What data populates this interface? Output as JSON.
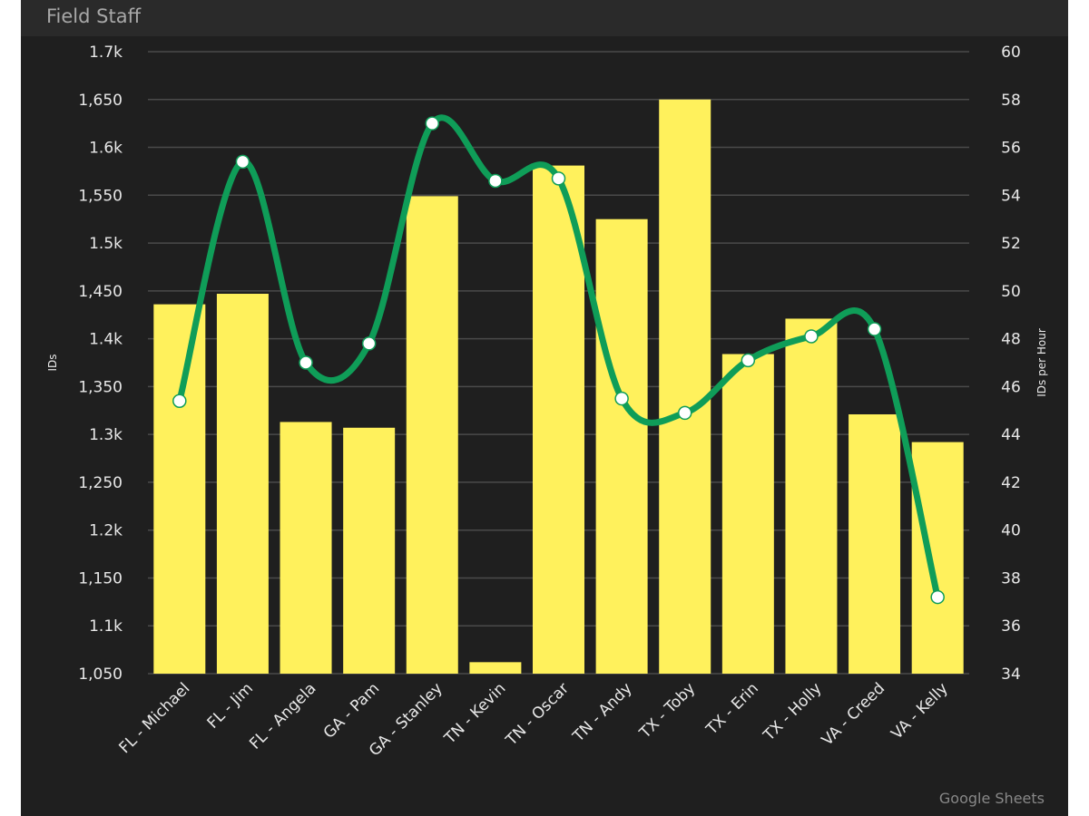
{
  "title": "Field Staff",
  "credit": "Google Sheets",
  "chart_data": {
    "type": "bar+line",
    "categories": [
      "FL - Michael",
      "FL - Jim",
      "FL - Angela",
      "GA - Pam",
      "GA - Stanley",
      "TN - Kevin",
      "TN - Oscar",
      "TN - Andy",
      "TX - Toby",
      "TX - Erin",
      "TX - Holly",
      "VA - Creed",
      "VA - Kelly"
    ],
    "series": [
      {
        "axis": "left",
        "type": "bar",
        "color": "#fff15c",
        "values": [
          1436,
          1447,
          1313,
          1307,
          1549,
          1062,
          1581,
          1525,
          1650,
          1384,
          1421,
          1321,
          1292
        ]
      },
      {
        "axis": "right",
        "type": "line",
        "smooth": true,
        "color": "#0f9d58",
        "values": [
          45.4,
          55.4,
          47.0,
          47.8,
          57.0,
          54.6,
          54.7,
          45.5,
          44.9,
          47.1,
          48.1,
          48.4,
          37.2
        ]
      }
    ],
    "ylabel": "IDs",
    "y2label": "IDs per Hour",
    "ylim": [
      1050,
      1700
    ],
    "y2lim": [
      34,
      60
    ],
    "yticks": [
      "1,050",
      "1.1k",
      "1,150",
      "1.2k",
      "1,250",
      "1.3k",
      "1,350",
      "1.4k",
      "1,450",
      "1.5k",
      "1,550",
      "1.6k",
      "1,650",
      "1.7k"
    ],
    "y2ticks": [
      "34",
      "36",
      "38",
      "40",
      "42",
      "44",
      "46",
      "48",
      "50",
      "52",
      "54",
      "56",
      "58",
      "60"
    ],
    "grid": true,
    "legend": "none"
  }
}
